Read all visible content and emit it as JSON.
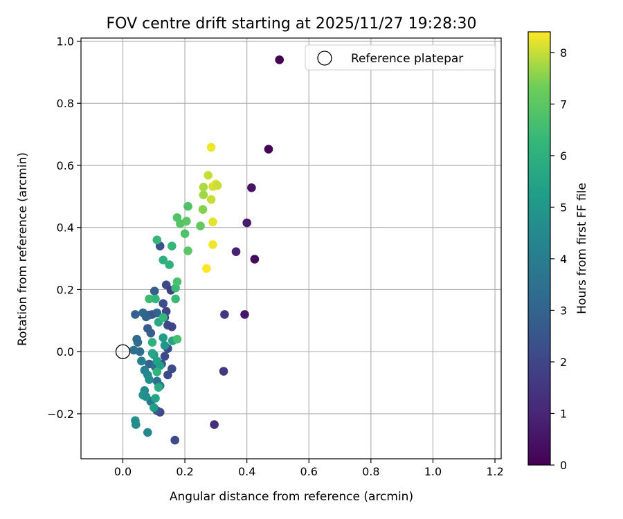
{
  "chart_data": {
    "type": "scatter",
    "title": "FOV centre drift starting at 2025/11/27 19:28:30",
    "xlabel": "Angular distance from reference (arcmin)",
    "ylabel": "Rotation from reference (arcmin)",
    "xlim": [
      -0.135,
      1.22
    ],
    "ylim": [
      -0.345,
      1.01
    ],
    "xticks": [
      0.0,
      0.2,
      0.4,
      0.6,
      0.8,
      1.0,
      1.2
    ],
    "xtick_labels": [
      "0.0",
      "0.2",
      "0.4",
      "0.6",
      "0.8",
      "1.0",
      "1.2"
    ],
    "yticks": [
      -0.2,
      0.0,
      0.2,
      0.4,
      0.6,
      0.8,
      1.0
    ],
    "ytick_labels": [
      "−0.2",
      "0.0",
      "0.2",
      "0.4",
      "0.6",
      "0.8",
      "1.0"
    ],
    "grid": true,
    "legend": {
      "placement": "top-right",
      "entries": [
        "Reference platepar"
      ]
    },
    "reference_point": {
      "label": "Reference platepar",
      "x": 0.0,
      "y": 0.0
    },
    "colorbar": {
      "label": "Hours from first FF file",
      "range": [
        0,
        8.4
      ],
      "ticks": [
        0,
        1,
        2,
        3,
        4,
        5,
        6,
        7,
        8
      ],
      "tick_labels": [
        "0",
        "1",
        "2",
        "3",
        "4",
        "5",
        "6",
        "7",
        "8"
      ],
      "colormap": "viridis"
    },
    "points": [
      {
        "x": 0.505,
        "y": 0.94,
        "h": 0.0
      },
      {
        "x": 0.47,
        "y": 0.652,
        "h": 0.05
      },
      {
        "x": 0.425,
        "y": 0.298,
        "h": 0.3
      },
      {
        "x": 0.415,
        "y": 0.528,
        "h": 0.5
      },
      {
        "x": 0.4,
        "y": 0.415,
        "h": 0.7
      },
      {
        "x": 0.365,
        "y": 0.322,
        "h": 0.9
      },
      {
        "x": 0.393,
        "y": 0.12,
        "h": 0.6
      },
      {
        "x": 0.328,
        "y": 0.12,
        "h": 1.5
      },
      {
        "x": 0.325,
        "y": -0.063,
        "h": 1.6
      },
      {
        "x": 0.295,
        "y": -0.235,
        "h": 1.3
      },
      {
        "x": 0.168,
        "y": -0.285,
        "h": 2.2
      },
      {
        "x": 0.14,
        "y": 0.215,
        "h": 2.1
      },
      {
        "x": 0.155,
        "y": 0.198,
        "h": 1.8
      },
      {
        "x": 0.13,
        "y": 0.155,
        "h": 2.3
      },
      {
        "x": 0.14,
        "y": 0.13,
        "h": 2.0
      },
      {
        "x": 0.135,
        "y": 0.11,
        "h": 2.2
      },
      {
        "x": 0.145,
        "y": 0.085,
        "h": 2.1
      },
      {
        "x": 0.158,
        "y": 0.08,
        "h": 2.0
      },
      {
        "x": 0.145,
        "y": 0.01,
        "h": 2.2
      },
      {
        "x": 0.135,
        "y": -0.015,
        "h": 2.1
      },
      {
        "x": 0.125,
        "y": -0.04,
        "h": 2.4
      },
      {
        "x": 0.158,
        "y": -0.055,
        "h": 2.2
      },
      {
        "x": 0.145,
        "y": -0.075,
        "h": 2.1
      },
      {
        "x": 0.12,
        "y": -0.195,
        "h": 2.0
      },
      {
        "x": 0.11,
        "y": -0.19,
        "h": 2.5
      },
      {
        "x": 0.12,
        "y": 0.34,
        "h": 2.4
      },
      {
        "x": 0.102,
        "y": 0.195,
        "h": 2.8
      },
      {
        "x": 0.095,
        "y": 0.12,
        "h": 2.6
      },
      {
        "x": 0.11,
        "y": 0.125,
        "h": 2.9
      },
      {
        "x": 0.085,
        "y": 0.118,
        "h": 2.5
      },
      {
        "x": 0.04,
        "y": 0.12,
        "h": 2.9
      },
      {
        "x": 0.065,
        "y": 0.125,
        "h": 3.2
      },
      {
        "x": 0.075,
        "y": 0.112,
        "h": 3.0
      },
      {
        "x": 0.08,
        "y": 0.075,
        "h": 2.7
      },
      {
        "x": 0.09,
        "y": 0.06,
        "h": 2.8
      },
      {
        "x": 0.045,
        "y": 0.04,
        "h": 3.1
      },
      {
        "x": 0.048,
        "y": 0.03,
        "h": 3.3
      },
      {
        "x": 0.035,
        "y": 0.005,
        "h": 3.5
      },
      {
        "x": 0.055,
        "y": 0.0,
        "h": 3.4
      },
      {
        "x": 0.085,
        "y": -0.04,
        "h": 3.0
      },
      {
        "x": 0.105,
        "y": -0.05,
        "h": 3.4
      },
      {
        "x": 0.11,
        "y": -0.095,
        "h": 3.5
      },
      {
        "x": 0.12,
        "y": -0.11,
        "h": 3.8
      },
      {
        "x": 0.09,
        "y": -0.16,
        "h": 3.7
      },
      {
        "x": 0.06,
        "y": -0.03,
        "h": 4.0
      },
      {
        "x": 0.07,
        "y": -0.06,
        "h": 4.2
      },
      {
        "x": 0.08,
        "y": -0.075,
        "h": 4.4
      },
      {
        "x": 0.085,
        "y": -0.09,
        "h": 4.6
      },
      {
        "x": 0.07,
        "y": -0.125,
        "h": 4.5
      },
      {
        "x": 0.065,
        "y": -0.14,
        "h": 4.9
      },
      {
        "x": 0.075,
        "y": -0.145,
        "h": 4.7
      },
      {
        "x": 0.04,
        "y": -0.222,
        "h": 4.8
      },
      {
        "x": 0.042,
        "y": -0.235,
        "h": 4.6
      },
      {
        "x": 0.08,
        "y": -0.26,
        "h": 4.4
      },
      {
        "x": 0.1,
        "y": -0.18,
        "h": 5.2
      },
      {
        "x": 0.105,
        "y": -0.15,
        "h": 5.5
      },
      {
        "x": 0.1,
        "y": -0.01,
        "h": 5.1
      },
      {
        "x": 0.095,
        "y": -0.005,
        "h": 5.6
      },
      {
        "x": 0.11,
        "y": -0.03,
        "h": 5.4
      },
      {
        "x": 0.12,
        "y": -0.045,
        "h": 5.3
      },
      {
        "x": 0.13,
        "y": 0.045,
        "h": 5.2
      },
      {
        "x": 0.135,
        "y": 0.02,
        "h": 5.0
      },
      {
        "x": 0.16,
        "y": 0.035,
        "h": 5.5
      },
      {
        "x": 0.115,
        "y": 0.095,
        "h": 5.7
      },
      {
        "x": 0.13,
        "y": 0.11,
        "h": 6.2
      },
      {
        "x": 0.095,
        "y": 0.03,
        "h": 6.0
      },
      {
        "x": 0.11,
        "y": -0.065,
        "h": 6.1
      },
      {
        "x": 0.115,
        "y": -0.115,
        "h": 5.8
      },
      {
        "x": 0.11,
        "y": 0.36,
        "h": 6.3
      },
      {
        "x": 0.13,
        "y": 0.295,
        "h": 6.0
      },
      {
        "x": 0.15,
        "y": 0.28,
        "h": 6.1
      },
      {
        "x": 0.158,
        "y": 0.34,
        "h": 6.3
      },
      {
        "x": 0.085,
        "y": 0.17,
        "h": 6.5
      },
      {
        "x": 0.105,
        "y": 0.17,
        "h": 6.2
      },
      {
        "x": 0.17,
        "y": 0.205,
        "h": 6.4
      },
      {
        "x": 0.175,
        "y": 0.225,
        "h": 6.7
      },
      {
        "x": 0.175,
        "y": 0.04,
        "h": 6.6
      },
      {
        "x": 0.17,
        "y": 0.17,
        "h": 6.4
      },
      {
        "x": 0.175,
        "y": 0.432,
        "h": 6.8
      },
      {
        "x": 0.185,
        "y": 0.412,
        "h": 6.9
      },
      {
        "x": 0.21,
        "y": 0.468,
        "h": 6.8
      },
      {
        "x": 0.205,
        "y": 0.42,
        "h": 7.0
      },
      {
        "x": 0.2,
        "y": 0.38,
        "h": 6.8
      },
      {
        "x": 0.21,
        "y": 0.325,
        "h": 7.0
      },
      {
        "x": 0.25,
        "y": 0.405,
        "h": 7.1
      },
      {
        "x": 0.258,
        "y": 0.458,
        "h": 7.5
      },
      {
        "x": 0.26,
        "y": 0.505,
        "h": 7.7
      },
      {
        "x": 0.26,
        "y": 0.53,
        "h": 7.8
      },
      {
        "x": 0.275,
        "y": 0.568,
        "h": 8.0
      },
      {
        "x": 0.285,
        "y": 0.49,
        "h": 8.0
      },
      {
        "x": 0.29,
        "y": 0.532,
        "h": 8.1
      },
      {
        "x": 0.3,
        "y": 0.54,
        "h": 8.2
      },
      {
        "x": 0.305,
        "y": 0.535,
        "h": 8.0
      },
      {
        "x": 0.285,
        "y": 0.658,
        "h": 8.3
      },
      {
        "x": 0.29,
        "y": 0.418,
        "h": 8.2
      },
      {
        "x": 0.29,
        "y": 0.345,
        "h": 8.3
      },
      {
        "x": 0.27,
        "y": 0.268,
        "h": 8.4
      }
    ]
  }
}
